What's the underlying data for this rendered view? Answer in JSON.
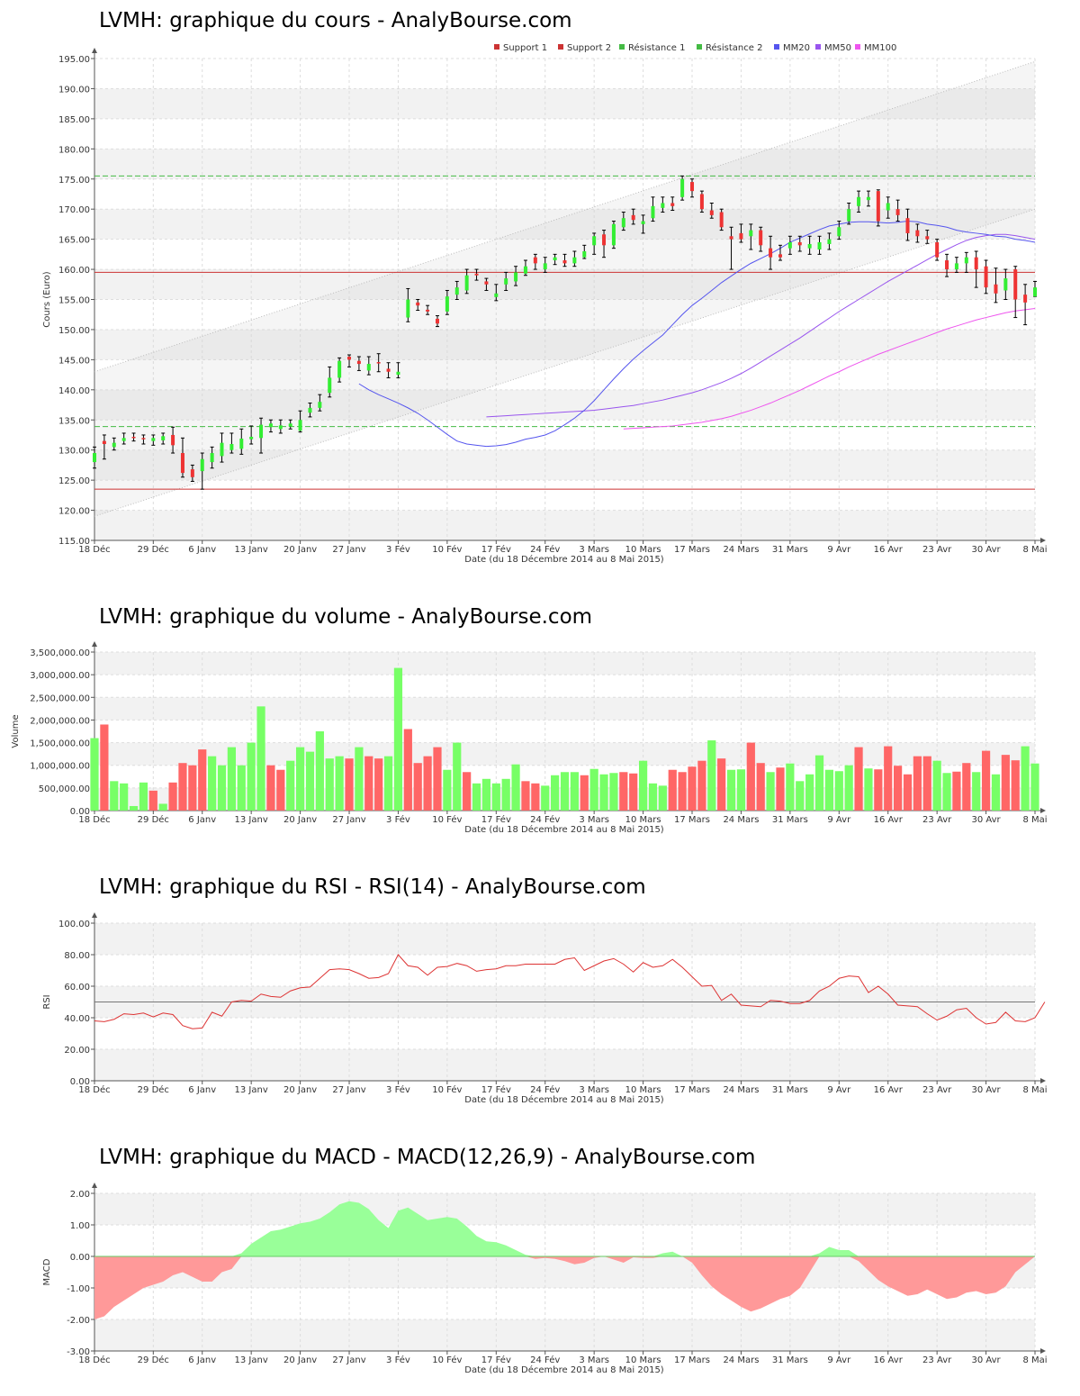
{
  "titles": {
    "price": "LVMH: graphique du cours - AnalyBourse.com",
    "volume": "LVMH: graphique du volume - AnalyBourse.com",
    "rsi": "LVMH: graphique du RSI - RSI(14) - AnalyBourse.com",
    "macd": "LVMH: graphique du MACD - MACD(12,26,9) - AnalyBourse.com"
  },
  "xlabel": "Date (du 18 Décembre 2014 au 8 Mai 2015)",
  "date_ticks": [
    {
      "label": "18 Déc",
      "i": 0
    },
    {
      "label": "29 Déc",
      "i": 6
    },
    {
      "label": "6 Janv",
      "i": 11
    },
    {
      "label": "13 Janv",
      "i": 16
    },
    {
      "label": "20 Janv",
      "i": 21
    },
    {
      "label": "27 Janv",
      "i": 26
    },
    {
      "label": "3 Fév",
      "i": 31
    },
    {
      "label": "10 Fév",
      "i": 36
    },
    {
      "label": "17 Fév",
      "i": 41
    },
    {
      "label": "24 Fév",
      "i": 46
    },
    {
      "label": "3 Mars",
      "i": 51
    },
    {
      "label": "10 Mars",
      "i": 56
    },
    {
      "label": "17 Mars",
      "i": 61
    },
    {
      "label": "24 Mars",
      "i": 66
    },
    {
      "label": "31 Mars",
      "i": 71
    },
    {
      "label": "9 Avr",
      "i": 76
    },
    {
      "label": "16 Avr",
      "i": 81
    },
    {
      "label": "23 Avr",
      "i": 86
    },
    {
      "label": "30 Avr",
      "i": 91
    },
    {
      "label": "8 Mai",
      "i": 96
    }
  ],
  "colors": {
    "up": "#33ee33",
    "down": "#ee3333",
    "vol_up": "#77ff66",
    "vol_down": "#ff6666",
    "mm20": "#5555ee",
    "mm50": "#9955ee",
    "mm100": "#ee55ee",
    "support": "#cc3333",
    "resistance": "#44bb44",
    "rsi": "#dd3333",
    "macd_pos": "#99ff99",
    "macd_neg": "#ff9999"
  },
  "chart_data": [
    {
      "type": "candlestick",
      "ylabel": "Cours (Euro)",
      "ylim": [
        115,
        195
      ],
      "yticks": [
        "115.00",
        "120.00",
        "125.00",
        "130.00",
        "135.00",
        "140.00",
        "145.00",
        "150.00",
        "155.00",
        "160.00",
        "165.00",
        "170.00",
        "175.00",
        "180.00",
        "185.00",
        "190.00",
        "195.00"
      ],
      "legend": [
        "Support 1",
        "Support 2",
        "Résistance 1",
        "Résistance 2",
        "MM20",
        "MM50",
        "MM100"
      ],
      "legend_position": "top-right",
      "support": [
        123.5,
        159.5
      ],
      "resistance": [
        133.9,
        175.5
      ],
      "channel": {
        "upper": [
          143,
          194.5
        ],
        "lower": [
          119,
          170
        ]
      },
      "close": [
        129.5,
        131.0,
        131.2,
        132.0,
        132.0,
        131.8,
        132.0,
        132.3,
        130.8,
        126.2,
        125.5,
        128.5,
        129.5,
        131.2,
        131.0,
        131.9,
        132.2,
        134.2,
        134.4,
        134.1,
        134.4,
        135.0,
        137.0,
        138.0,
        142.0,
        144.8,
        145.0,
        144.3,
        144.3,
        144.5,
        143.0,
        143.0,
        155.0,
        154.0,
        153.0,
        151.0,
        155.5,
        157.0,
        159.0,
        159.0,
        157.5,
        156.0,
        158.5,
        159.5,
        160.5,
        161.0,
        161.0,
        162.0,
        161.0,
        162.0,
        163.0,
        165.5,
        164.0,
        167.5,
        168.5,
        168.2,
        168.0,
        170.5,
        171.0,
        170.5,
        175.0,
        173.0,
        170.0,
        169.0,
        167.0,
        165.0,
        165.0,
        166.5,
        164.0,
        162.0,
        162.0,
        164.5,
        164.0,
        164.2,
        164.5,
        165.0,
        167.0,
        170.0,
        172.0,
        172.0,
        168.0,
        171.0,
        169.0,
        166.0,
        165.5,
        165.0,
        162.0,
        160.0,
        161.0,
        162.0,
        160.0,
        157.0,
        156.0,
        158.5,
        155.0,
        154.5,
        157.0
      ],
      "open": [
        128.0,
        131.5,
        130.5,
        131.5,
        132.2,
        132.0,
        131.5,
        131.6,
        132.5,
        129.5,
        126.8,
        126.5,
        128.0,
        129.0,
        130.0,
        130.2,
        131.8,
        132.0,
        133.8,
        133.5,
        133.9,
        133.2,
        136.2,
        137.0,
        139.5,
        142.0,
        145.5,
        144.8,
        143.2,
        144.6,
        143.5,
        142.5,
        152.0,
        154.5,
        153.3,
        151.8,
        153.0,
        155.8,
        156.5,
        159.3,
        158.0,
        155.4,
        157.5,
        158.0,
        159.3,
        162.0,
        160.0,
        161.5,
        161.5,
        161.0,
        162.0,
        164.0,
        165.8,
        164.0,
        167.0,
        169.0,
        167.5,
        168.5,
        170.2,
        171.0,
        172.0,
        174.5,
        172.5,
        169.8,
        169.5,
        165.5,
        166.0,
        165.5,
        166.5,
        163.5,
        162.5,
        163.5,
        164.5,
        163.5,
        163.3,
        164.2,
        165.5,
        168.0,
        170.5,
        171.5,
        173.0,
        169.8,
        170.0,
        168.5,
        166.5,
        165.5,
        164.5,
        161.5,
        160.0,
        161.0,
        162.0,
        160.5,
        157.5,
        156.5,
        160.0,
        155.8,
        155.5
      ],
      "high": [
        130.5,
        132.5,
        132.0,
        132.8,
        132.8,
        132.5,
        132.5,
        132.8,
        133.8,
        132.0,
        127.5,
        129.5,
        130.5,
        132.8,
        132.8,
        133.5,
        134.0,
        135.3,
        135.0,
        135.0,
        135.0,
        136.5,
        137.8,
        139.2,
        143.8,
        145.3,
        145.8,
        145.5,
        145.5,
        146.0,
        144.5,
        144.5,
        156.8,
        155.0,
        154.0,
        152.3,
        156.5,
        158.0,
        160.0,
        160.0,
        158.5,
        157.5,
        159.5,
        160.5,
        161.5,
        162.5,
        162.0,
        162.5,
        162.5,
        163.0,
        164.0,
        166.0,
        166.5,
        168.0,
        169.5,
        170.0,
        169.0,
        172.0,
        172.0,
        172.0,
        175.5,
        175.0,
        173.0,
        171.0,
        170.0,
        167.0,
        167.5,
        167.5,
        167.0,
        165.5,
        164.0,
        165.5,
        165.5,
        165.5,
        165.5,
        166.0,
        168.0,
        171.0,
        173.0,
        173.0,
        173.2,
        172.0,
        171.5,
        170.0,
        167.5,
        166.5,
        165.0,
        162.5,
        162.0,
        162.8,
        163.0,
        161.5,
        160.2,
        160.0,
        160.5,
        157.5,
        158.0
      ],
      "low": [
        127.0,
        128.5,
        130.0,
        131.0,
        131.5,
        131.0,
        130.8,
        131.0,
        129.5,
        125.5,
        124.8,
        123.5,
        127.0,
        128.0,
        129.5,
        129.3,
        131.0,
        129.5,
        133.0,
        132.8,
        133.5,
        133.0,
        135.5,
        136.5,
        138.8,
        141.3,
        143.8,
        143.2,
        142.5,
        143.0,
        142.0,
        142.0,
        151.3,
        153.2,
        152.5,
        150.5,
        152.5,
        155.0,
        156.0,
        158.2,
        156.5,
        154.8,
        156.5,
        157.3,
        159.0,
        160.0,
        159.5,
        160.8,
        160.5,
        160.5,
        161.8,
        162.5,
        162.0,
        163.5,
        166.5,
        167.5,
        166.0,
        168.0,
        169.5,
        169.8,
        171.5,
        172.0,
        169.5,
        168.5,
        166.5,
        160.0,
        164.5,
        163.3,
        163.0,
        160.0,
        161.5,
        162.5,
        163.0,
        162.5,
        162.5,
        163.3,
        165.0,
        167.5,
        169.5,
        170.5,
        167.2,
        168.5,
        168.0,
        164.8,
        164.5,
        164.3,
        161.5,
        158.8,
        159.5,
        159.5,
        157.0,
        156.0,
        154.5,
        155.0,
        152.0,
        150.8,
        155.5
      ],
      "mm20": [
        141,
        140.0,
        139.2,
        138.5,
        137.8,
        137.0,
        136.1,
        135.0,
        133.8,
        132.6,
        131.5,
        131.0,
        130.8,
        130.6,
        130.7,
        130.9,
        131.3,
        131.8,
        132.1,
        132.5,
        133.2,
        134.2,
        135.3,
        136.6,
        138.2,
        140.0,
        141.8,
        143.5,
        145.1,
        146.5,
        147.8,
        149.1,
        150.8,
        152.5,
        154.0,
        155.2,
        156.5,
        157.8,
        158.9,
        160.0,
        161.0,
        161.8,
        162.6,
        163.5,
        164.5,
        165.2,
        165.9,
        166.6,
        167.2,
        167.5,
        167.8,
        167.9,
        167.9,
        167.8,
        167.7,
        167.8,
        168.0,
        167.9,
        167.5,
        167.3,
        167.0,
        166.5,
        166.2,
        166.0,
        165.8,
        165.5,
        165.4,
        165.0,
        164.8,
        164.5
      ],
      "mm50": [
        135.5,
        135.6,
        135.7,
        135.8,
        135.9,
        136.0,
        136.1,
        136.2,
        136.3,
        136.4,
        136.5,
        136.6,
        136.8,
        137.0,
        137.2,
        137.4,
        137.7,
        138.0,
        138.3,
        138.7,
        139.1,
        139.5,
        140.0,
        140.6,
        141.2,
        141.9,
        142.7,
        143.6,
        144.6,
        145.6,
        146.6,
        147.6,
        148.6,
        149.7,
        150.8,
        151.9,
        153.0,
        154.0,
        155.0,
        156.0,
        157.0,
        158.0,
        158.9,
        159.8,
        160.7,
        161.6,
        162.5,
        163.3,
        164.1,
        164.8,
        165.3,
        165.6,
        165.8,
        165.8,
        165.6,
        165.3,
        165.0
      ],
      "mm100": [
        133.5,
        133.6,
        133.7,
        133.8,
        133.9,
        134.0,
        134.2,
        134.4,
        134.6,
        134.9,
        135.2,
        135.6,
        136.1,
        136.6,
        137.2,
        137.8,
        138.5,
        139.2,
        139.9,
        140.7,
        141.5,
        142.3,
        143.0,
        143.8,
        144.5,
        145.2,
        145.9,
        146.5,
        147.1,
        147.7,
        148.3,
        148.9,
        149.5,
        150.1,
        150.6,
        151.1,
        151.6,
        152.0,
        152.4,
        152.8,
        153.1,
        153.3,
        153.5
      ]
    },
    {
      "type": "bar",
      "ylabel": "Volume",
      "ylim": [
        0,
        3500000
      ],
      "yticks": [
        "0.00",
        "500,000.00",
        "1,000,000.00",
        "1,500,000.00",
        "2,000,000.00",
        "2,500,000.00",
        "3,000,000.00",
        "3,500,000.00"
      ],
      "values": [
        1600000,
        1900000,
        650000,
        600000,
        100000,
        620000,
        440000,
        150000,
        620000,
        1050000,
        1000000,
        1350000,
        1200000,
        1000000,
        1400000,
        1000000,
        1500000,
        2300000,
        1000000,
        900000,
        1100000,
        1400000,
        1300000,
        1750000,
        1150000,
        1200000,
        1150000,
        1400000,
        1200000,
        1150000,
        1200000,
        3150000,
        1800000,
        1050000,
        1200000,
        1400000,
        900000,
        1500000,
        850000,
        600000,
        700000,
        600000,
        700000,
        1020000,
        650000,
        600000,
        550000,
        780000,
        850000,
        850000,
        780000,
        920000,
        800000,
        830000,
        850000,
        820000,
        1100000,
        600000,
        550000,
        900000,
        850000,
        970000,
        1100000,
        1550000,
        1150000,
        900000,
        910000,
        1500000,
        1050000,
        850000,
        950000,
        1040000,
        650000,
        800000,
        1220000,
        900000,
        870000,
        1000000,
        1400000,
        930000,
        910000,
        1420000,
        990000,
        800000,
        1200000,
        1200000,
        1100000,
        830000,
        860000,
        1050000,
        850000,
        1320000,
        800000,
        1230000,
        1110000,
        1420000,
        1040000
      ],
      "up": [
        1,
        0,
        1,
        1,
        1,
        1,
        0,
        1,
        0,
        0,
        0,
        0,
        1,
        1,
        1,
        1,
        1,
        1,
        0,
        0,
        1,
        1,
        1,
        1,
        1,
        1,
        0,
        1,
        0,
        0,
        1,
        1,
        0,
        0,
        0,
        0,
        1,
        1,
        0,
        1,
        1,
        1,
        1,
        1,
        0,
        0,
        1,
        1,
        1,
        1,
        0,
        1,
        1,
        1,
        0,
        0,
        1,
        1,
        1,
        0,
        0,
        0,
        0,
        1,
        0,
        1,
        1,
        0,
        0,
        1,
        0,
        1,
        1,
        1,
        1,
        1,
        1,
        1,
        0,
        1,
        0,
        0,
        0,
        0,
        0,
        0,
        1,
        1,
        0,
        0,
        1,
        0,
        1,
        0,
        0,
        1,
        1
      ]
    },
    {
      "type": "line",
      "ylabel": "RSI",
      "ylim": [
        0,
        100
      ],
      "yticks": [
        "0.00",
        "20.00",
        "40.00",
        "60.00",
        "80.00",
        "100.00"
      ],
      "reference": 50,
      "values": [
        38,
        37.5,
        39,
        42.5,
        42,
        43,
        40.5,
        43,
        42,
        35,
        33,
        33.5,
        43.5,
        41,
        50,
        51,
        50.5,
        55,
        53.5,
        53,
        57,
        59,
        59.5,
        65,
        70.5,
        71,
        70.5,
        68,
        65,
        65.5,
        68,
        80,
        73,
        72,
        67,
        72,
        72.5,
        74.5,
        73,
        69.5,
        70.5,
        71,
        73,
        73,
        74,
        74,
        74,
        74,
        77,
        78,
        70,
        73,
        76,
        77.5,
        74,
        69,
        75,
        72,
        73,
        77,
        72,
        66,
        60,
        60.5,
        51,
        55,
        48,
        47.5,
        47,
        51,
        50.5,
        49,
        49,
        51,
        57,
        60,
        65,
        66.5,
        66,
        56,
        60,
        55,
        48,
        47.5,
        47,
        42.5,
        38.5,
        41,
        45,
        46,
        40,
        36,
        37,
        43.5,
        38,
        37.5,
        40,
        50
      ]
    },
    {
      "type": "area",
      "ylabel": "MACD",
      "ylim": [
        -3,
        2
      ],
      "yticks": [
        "-3.00",
        "-2.00",
        "-1.00",
        "0.00",
        "1.00",
        "2.00"
      ],
      "values": [
        -2.0,
        -1.9,
        -1.6,
        -1.4,
        -1.2,
        -1.0,
        -0.9,
        -0.8,
        -0.6,
        -0.5,
        -0.65,
        -0.8,
        -0.8,
        -0.5,
        -0.4,
        0.1,
        0.4,
        0.6,
        0.8,
        0.85,
        0.95,
        1.05,
        1.1,
        1.2,
        1.4,
        1.65,
        1.75,
        1.7,
        1.5,
        1.15,
        0.9,
        1.45,
        1.55,
        1.35,
        1.15,
        1.2,
        1.25,
        1.2,
        0.95,
        0.65,
        0.48,
        0.45,
        0.35,
        0.2,
        0.05,
        -0.08,
        -0.05,
        -0.08,
        -0.15,
        -0.25,
        -0.2,
        -0.05,
        0.0,
        -0.1,
        -0.2,
        -0.03,
        -0.05,
        -0.05,
        0.1,
        0.15,
        0.0,
        -0.2,
        -0.6,
        -0.95,
        -1.2,
        -1.4,
        -1.6,
        -1.75,
        -1.65,
        -1.5,
        -1.35,
        -1.25,
        -1.0,
        -0.5,
        0.1,
        0.3,
        0.2,
        0.2,
        -0.15,
        -0.45,
        -0.75,
        -0.95,
        -1.1,
        -1.25,
        -1.2,
        -1.05,
        -1.2,
        -1.35,
        -1.3,
        -1.15,
        -1.1,
        -1.2,
        -1.15,
        -0.95,
        -0.5
      ]
    }
  ]
}
